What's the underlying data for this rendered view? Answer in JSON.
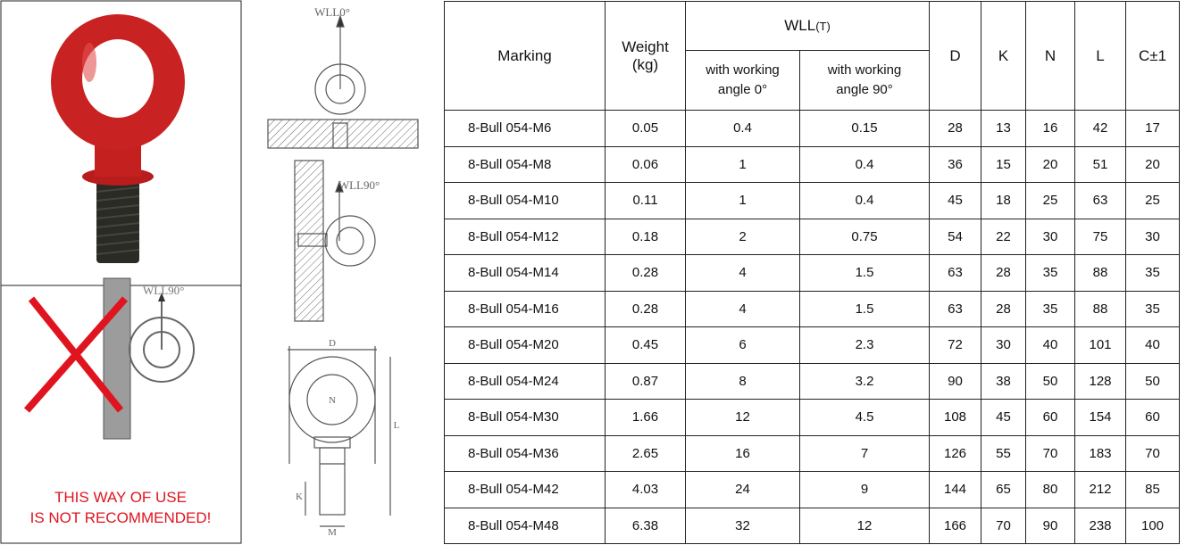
{
  "left_panel": {
    "warning_label": "WLL90°",
    "warning": [
      "THIS WAY OF USE",
      "IS NOT RECOMMENDED!"
    ]
  },
  "drawings": {
    "top_label": "WLL0°",
    "side_label": "WLL90°",
    "dims": [
      "D",
      "N",
      "L",
      "K",
      "M"
    ]
  },
  "table": {
    "header": {
      "marking": "Marking",
      "weight": [
        "Weight",
        "(kg)"
      ],
      "wll": "WLL",
      "wll_unit": "(T)",
      "angle0": [
        "with working",
        "angle 0°"
      ],
      "angle90": [
        "with working",
        "angle 90°"
      ],
      "dims": [
        "D",
        "K",
        "N",
        "L",
        "C±1"
      ]
    },
    "rows": [
      [
        "8-Bull 054-M6",
        "0.05",
        "0.4",
        "0.15",
        "28",
        "13",
        "16",
        "42",
        "17"
      ],
      [
        "8-Bull 054-M8",
        "0.06",
        "1",
        "0.4",
        "36",
        "15",
        "20",
        "51",
        "20"
      ],
      [
        "8-Bull 054-M10",
        "0.11",
        "1",
        "0.4",
        "45",
        "18",
        "25",
        "63",
        "25"
      ],
      [
        "8-Bull 054-M12",
        "0.18",
        "2",
        "0.75",
        "54",
        "22",
        "30",
        "75",
        "30"
      ],
      [
        "8-Bull 054-M14",
        "0.28",
        "4",
        "1.5",
        "63",
        "28",
        "35",
        "88",
        "35"
      ],
      [
        "8-Bull 054-M16",
        "0.28",
        "4",
        "1.5",
        "63",
        "28",
        "35",
        "88",
        "35"
      ],
      [
        "8-Bull 054-M20",
        "0.45",
        "6",
        "2.3",
        "72",
        "30",
        "40",
        "101",
        "40"
      ],
      [
        "8-Bull 054-M24",
        "0.87",
        "8",
        "3.2",
        "90",
        "38",
        "50",
        "128",
        "50"
      ],
      [
        "8-Bull 054-M30",
        "1.66",
        "12",
        "4.5",
        "108",
        "45",
        "60",
        "154",
        "60"
      ],
      [
        "8-Bull 054-M36",
        "2.65",
        "16",
        "7",
        "126",
        "55",
        "70",
        "183",
        "70"
      ],
      [
        "8-Bull 054-M42",
        "4.03",
        "24",
        "9",
        "144",
        "65",
        "80",
        "212",
        "85"
      ],
      [
        "8-Bull 054-M48",
        "6.38",
        "32",
        "12",
        "166",
        "70",
        "90",
        "238",
        "100"
      ]
    ]
  }
}
